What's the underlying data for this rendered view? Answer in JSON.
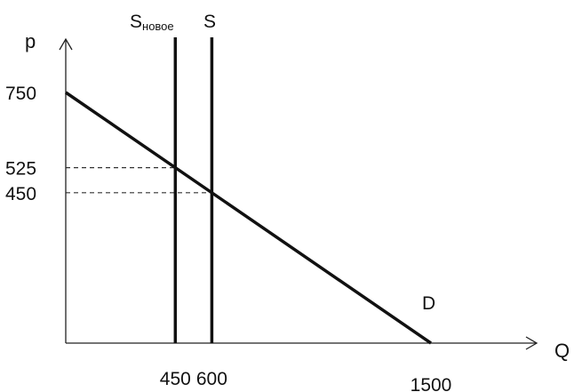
{
  "chart_data": {
    "type": "line",
    "xlabel": "Q",
    "ylabel": "p",
    "xlim": [
      0,
      1500
    ],
    "ylim": [
      0,
      750
    ],
    "x_ticks": [
      450,
      600,
      1500
    ],
    "y_ticks": [
      750,
      525,
      450
    ],
    "series": [
      {
        "name": "D",
        "points": [
          [
            0,
            750
          ],
          [
            1500,
            0
          ]
        ]
      },
      {
        "name": "S",
        "vertical_at": 600
      },
      {
        "name": "S",
        "subscript": "новое",
        "vertical_at": 450
      }
    ],
    "reference_lines": [
      {
        "type": "horizontal-dashed",
        "y": 525,
        "from_x": 0,
        "to_x": 450
      },
      {
        "type": "horizontal-dashed",
        "y": 450,
        "from_x": 0,
        "to_x": 600
      }
    ],
    "colors": {
      "line": "#111111",
      "dashed": "#333333"
    }
  }
}
